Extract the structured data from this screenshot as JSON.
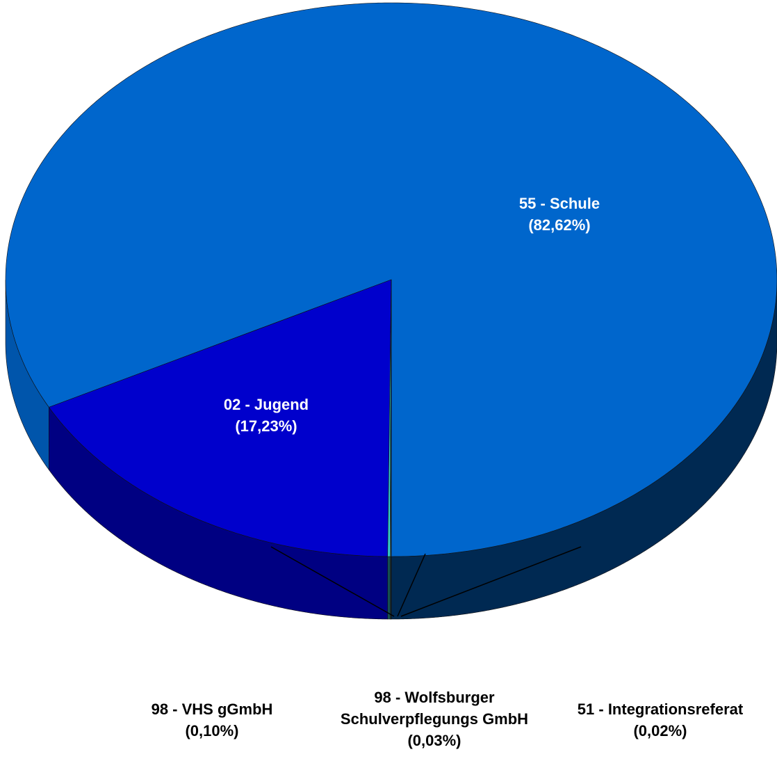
{
  "chart_data": {
    "type": "pie",
    "categories": [
      "55 - Schule",
      "02 - Jugend",
      "98 - VHS gGmbH",
      "98 - Wolfsburger Schulverpflegungs GmbH",
      "51 - Integrationsreferat"
    ],
    "values": [
      82.62,
      17.23,
      0.1,
      0.03,
      0.02
    ],
    "value_labels": [
      "(82,62%)",
      "(17,23%)",
      "(0,10%)",
      "(0,03%)",
      "(0,02%)"
    ],
    "colors": [
      "#0066cc",
      "#0000cc",
      "#33cccc",
      "#66e0e0",
      "#99ffff"
    ]
  }
}
